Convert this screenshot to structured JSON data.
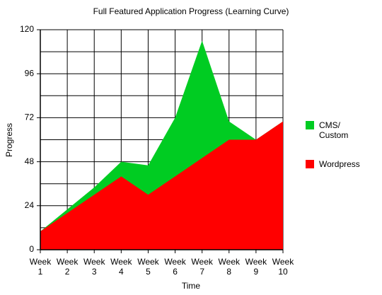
{
  "chart_data": {
    "type": "area",
    "title": "Full Featured Application Progress (Learning Curve)",
    "x_label": "Time",
    "y_label": "Progress",
    "categories": [
      "Week 1",
      "Week 2",
      "Week 3",
      "Week 4",
      "Week 5",
      "Week 6",
      "Week 7",
      "Week 8",
      "Week 9",
      "Week 10"
    ],
    "series": [
      {
        "name": "CMS/ Custom",
        "color": "#00cc22",
        "values": [
          10,
          22,
          34,
          48,
          46,
          72,
          114,
          70,
          60,
          70
        ]
      },
      {
        "name": "Wordpress",
        "color": "#ff0000",
        "values": [
          10,
          20,
          30,
          40,
          30,
          40,
          50,
          60,
          60,
          70
        ]
      }
    ],
    "ylim": [
      0,
      120
    ],
    "yticks": [
      0,
      24,
      48,
      72,
      96,
      120
    ],
    "yminor": [
      12,
      36,
      60,
      84,
      108
    ],
    "grid": true,
    "legend": "right"
  }
}
